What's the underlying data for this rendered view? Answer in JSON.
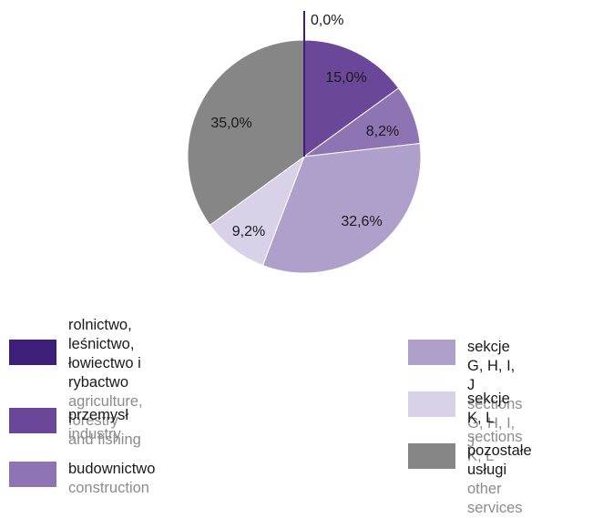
{
  "chart_data": {
    "type": "pie",
    "title": "",
    "slices": [
      {
        "value": 0.0,
        "label": "0,0%",
        "color": "#3d1f7a"
      },
      {
        "value": 15.0,
        "label": "15,0%",
        "color": "#6a4799"
      },
      {
        "value": 8.2,
        "label": "8,2%",
        "color": "#8f74b4"
      },
      {
        "value": 32.6,
        "label": "32,6%",
        "color": "#afa0cb"
      },
      {
        "value": 9.2,
        "label": "9,2%",
        "color": "#d8d1e7"
      },
      {
        "value": 35.0,
        "label": "35,0%",
        "color": "#868686"
      }
    ],
    "legend": [
      {
        "pl": "rolnictwo, leśnictwo,\nłowiectwo i rybactwo",
        "en": "agriculture, forestry\nand fishing",
        "color": "#3d1f7a"
      },
      {
        "pl": "przemysł",
        "en": "industry",
        "color": "#6a4799"
      },
      {
        "pl": "budownictwo",
        "en": "construction",
        "color": "#8f74b4"
      },
      {
        "pl": "sekcje G, H, I, J",
        "en": "sections G, H, I, J",
        "color": "#afa0cb"
      },
      {
        "pl": "sekcje K, L",
        "en": "sections K, L",
        "color": "#d8d1e7"
      },
      {
        "pl": "pozostałe usługi",
        "en": "other services",
        "color": "#868686"
      }
    ]
  }
}
